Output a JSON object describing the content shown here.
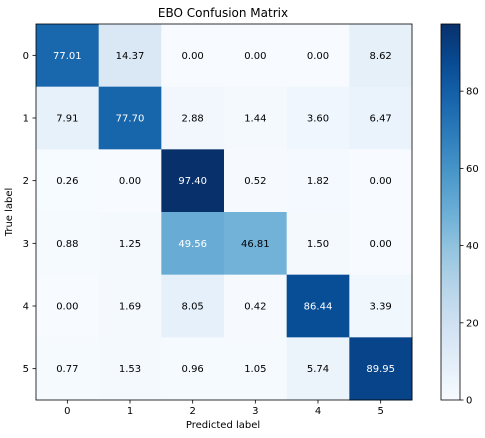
{
  "chart_data": {
    "type": "heatmap",
    "title": "EBO Confusion Matrix",
    "xlabel": "Predicted label",
    "ylabel": "True label",
    "x_ticks": [
      "0",
      "1",
      "2",
      "3",
      "4",
      "5"
    ],
    "y_ticks": [
      "0",
      "1",
      "2",
      "3",
      "4",
      "5"
    ],
    "matrix": [
      [
        "77.01",
        "14.37",
        "0.00",
        "0.00",
        "0.00",
        "8.62"
      ],
      [
        "7.91",
        "77.70",
        "2.88",
        "1.44",
        "3.60",
        "6.47"
      ],
      [
        "0.26",
        "0.00",
        "97.40",
        "0.52",
        "1.82",
        "0.00"
      ],
      [
        "0.88",
        "1.25",
        "49.56",
        "46.81",
        "1.50",
        "0.00"
      ],
      [
        "0.00",
        "1.69",
        "8.05",
        "0.42",
        "86.44",
        "3.39"
      ],
      [
        "0.77",
        "1.53",
        "0.96",
        "1.05",
        "5.74",
        "89.95"
      ]
    ],
    "colormap": "Blues",
    "vmin": 0,
    "vmax": 97.4,
    "colorbar_ticks": [
      "0",
      "20",
      "40",
      "60",
      "80"
    ],
    "colors": {
      "low": "#f7fbff",
      "high": "#08306b"
    }
  }
}
